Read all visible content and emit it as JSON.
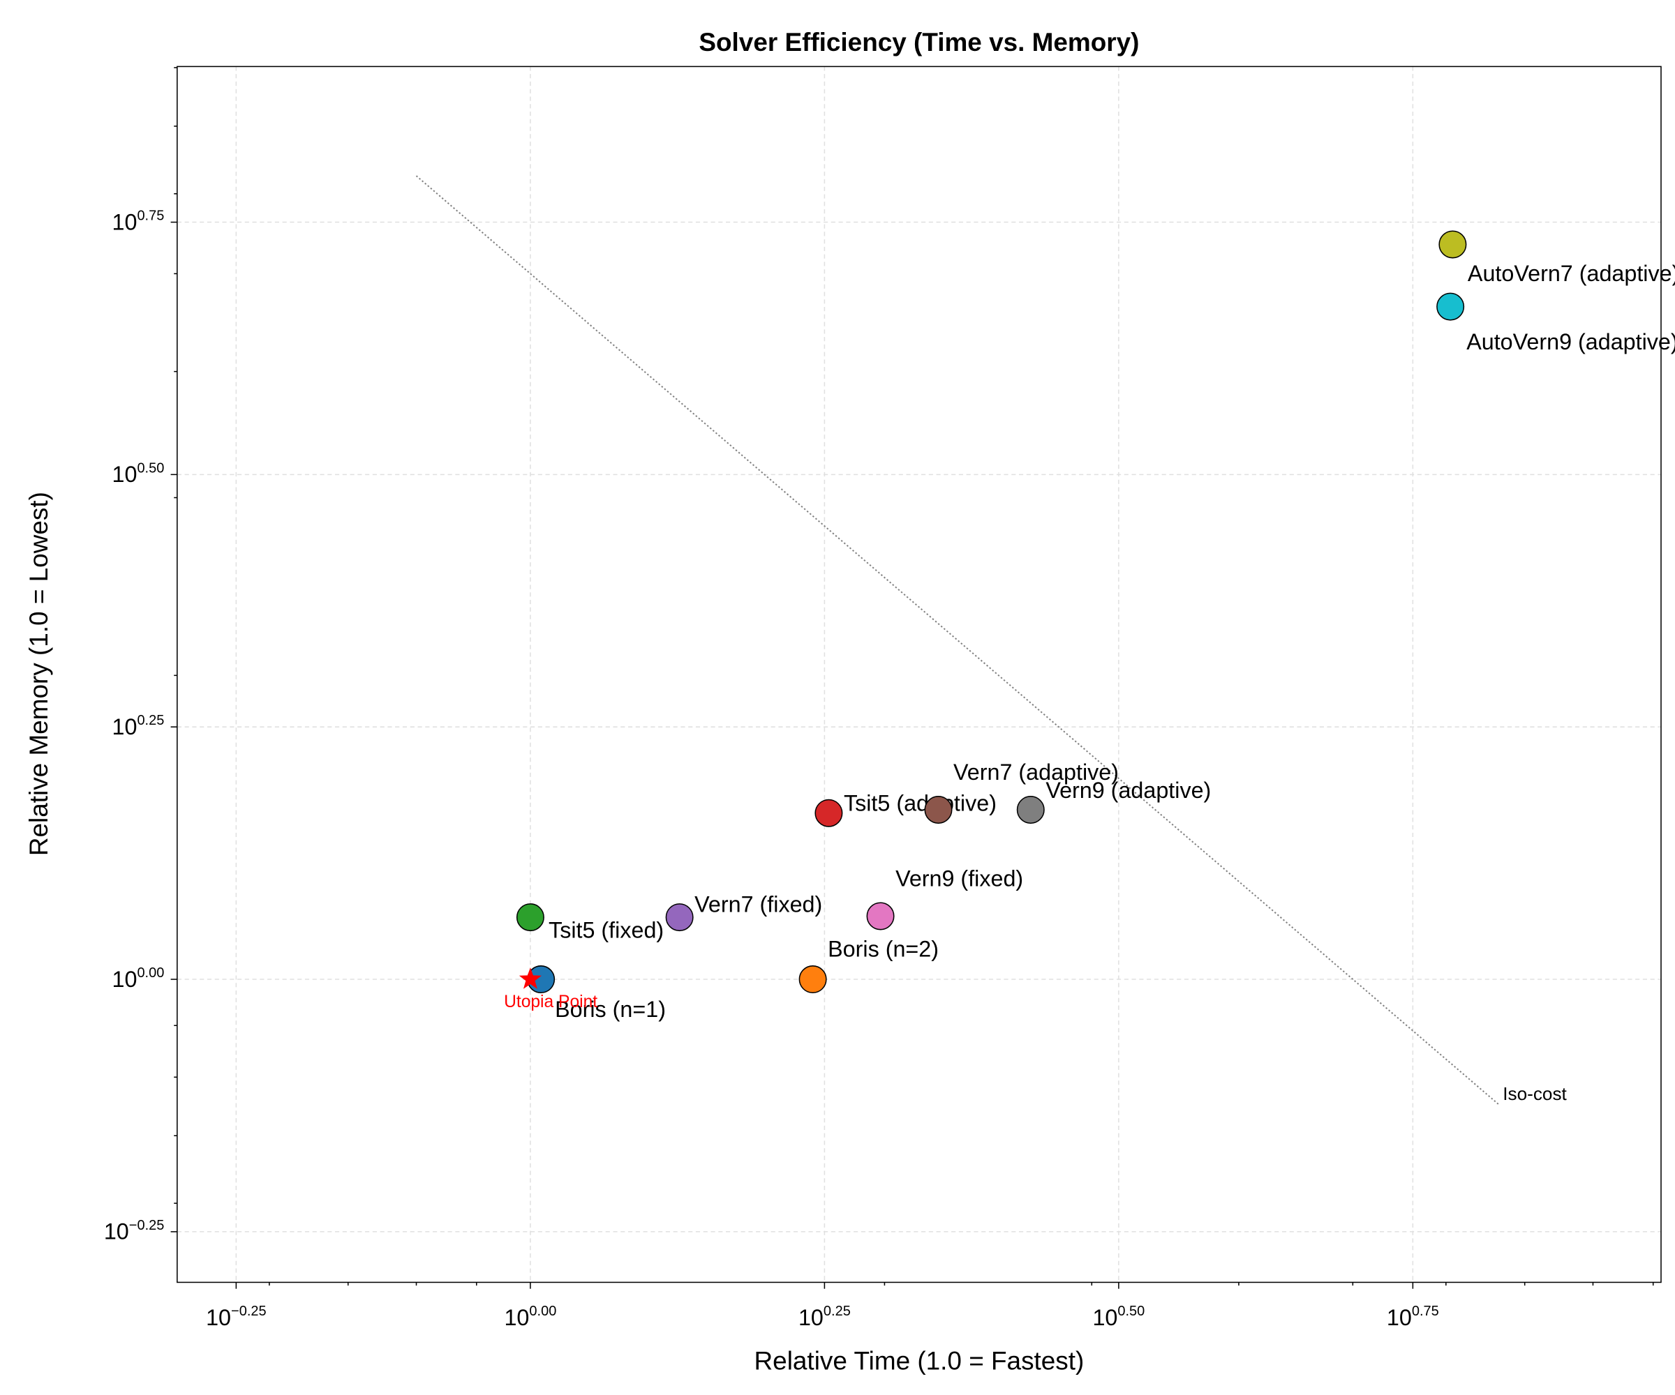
{
  "chart_data": {
    "type": "scatter",
    "title": "Solver Efficiency (Time vs. Memory)",
    "xlabel": "Relative Time (1.0 = Fastest)",
    "ylabel": "Relative Memory (1.0 = Lowest)",
    "xscale": "log",
    "yscale": "log",
    "xlim": [
      0.501,
      9.14
    ],
    "ylim": [
      0.501,
      8.02
    ],
    "xticks": [
      {
        "value": 0.5623,
        "label": {
          "base": "10",
          "exponent": "−0.25"
        }
      },
      {
        "value": 1,
        "label": {
          "base": "10",
          "exponent": "0.00"
        }
      },
      {
        "value": 1.7783,
        "label": {
          "base": "10",
          "exponent": "0.25"
        }
      },
      {
        "value": 3.1623,
        "label": {
          "base": "10",
          "exponent": "0.50"
        }
      },
      {
        "value": 5.6234,
        "label": {
          "base": "10",
          "exponent": "0.75"
        }
      }
    ],
    "yticks": [
      {
        "value": 0.5623,
        "label": {
          "base": "10",
          "exponent": "−0.25"
        }
      },
      {
        "value": 1,
        "label": {
          "base": "10",
          "exponent": "0.00"
        }
      },
      {
        "value": 1.7783,
        "label": {
          "base": "10",
          "exponent": "0.25"
        }
      },
      {
        "value": 3.1623,
        "label": {
          "base": "10",
          "exponent": "0.50"
        }
      },
      {
        "value": 5.6234,
        "label": {
          "base": "10",
          "exponent": "0.75"
        }
      }
    ],
    "xminorticks": [
      0.6,
      0.7,
      0.8,
      0.9,
      2,
      3,
      4,
      5,
      6,
      7,
      8,
      9
    ],
    "yminorticks": [
      0.6,
      0.7,
      0.8,
      0.9,
      2,
      3,
      4,
      5,
      6,
      7,
      8
    ],
    "grid": true,
    "series": [
      {
        "name": "Boris (n=1)",
        "color": "#1f77b4",
        "x": [
          1.021
        ],
        "y": [
          1.0
        ]
      },
      {
        "name": "Boris (n=2)",
        "color": "#ff7f0e",
        "x": [
          1.738
        ],
        "y": [
          1.0
        ]
      },
      {
        "name": "Tsit5 (fixed)",
        "color": "#2ca02c",
        "x": [
          1.0
        ],
        "y": [
          1.152
        ]
      },
      {
        "name": "Tsit5 (adaptive)",
        "color": "#d62728",
        "x": [
          1.793
        ],
        "y": [
          1.461
        ]
      },
      {
        "name": "Vern7 (fixed)",
        "color": "#9467bd",
        "x": [
          1.339
        ],
        "y": [
          1.152
        ]
      },
      {
        "name": "Vern7 (adaptive)",
        "color": "#8c564b",
        "x": [
          2.222
        ],
        "y": [
          1.472
        ]
      },
      {
        "name": "Vern9 (fixed)",
        "color": "#e377c2",
        "x": [
          1.984
        ],
        "y": [
          1.155
        ]
      },
      {
        "name": "Vern9 (adaptive)",
        "color": "#7f7f7f",
        "x": [
          2.662
        ],
        "y": [
          1.472
        ]
      },
      {
        "name": "AutoVern7 (adaptive)",
        "color": "#bcbd22",
        "x": [
          6.079
        ],
        "y": [
          5.345
        ]
      },
      {
        "name": "AutoVern9 (adaptive)",
        "color": "#17becf",
        "x": [
          6.052
        ],
        "y": [
          4.638
        ]
      }
    ],
    "utopia": {
      "text": "Utopia Point",
      "color": "#ff0000",
      "x": 1,
      "y": 1
    },
    "reference_line": {
      "name": "Iso-cost",
      "color": "#808080",
      "x": [
        0.8,
        6.65
      ],
      "y": [
        6.25,
        0.752
      ]
    }
  }
}
